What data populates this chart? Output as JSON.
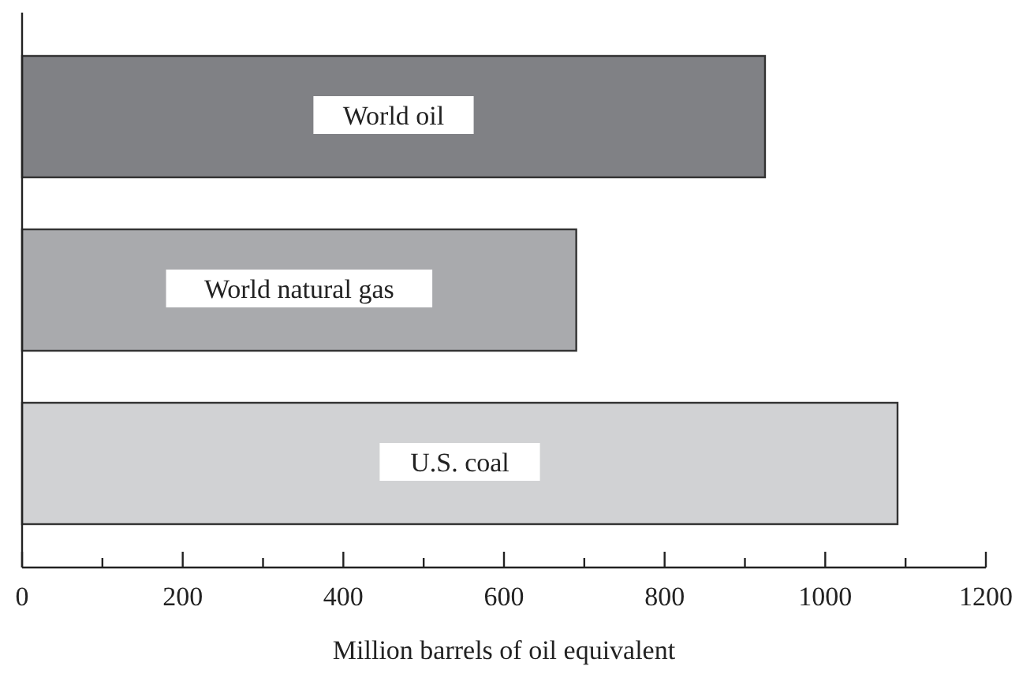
{
  "chart_data": {
    "type": "bar",
    "orientation": "horizontal",
    "xlabel": "Million barrels of oil equivalent",
    "categories": [
      "World oil",
      "World natural gas",
      "U.S. coal"
    ],
    "values": [
      925,
      690,
      1090
    ],
    "colors": [
      "#808185",
      "#a9aaad",
      "#d1d2d4"
    ],
    "xlim": [
      0,
      1200
    ],
    "xticks": [
      0,
      {
        "value": 100,
        "label": null
      },
      200,
      {
        "value": 300,
        "label": null
      },
      400,
      {
        "value": 500,
        "label": null
      },
      600,
      {
        "value": 700,
        "label": null
      },
      800,
      {
        "value": 900,
        "label": null
      },
      1000,
      {
        "value": 1100,
        "label": null
      },
      1200
    ],
    "grid": false
  }
}
